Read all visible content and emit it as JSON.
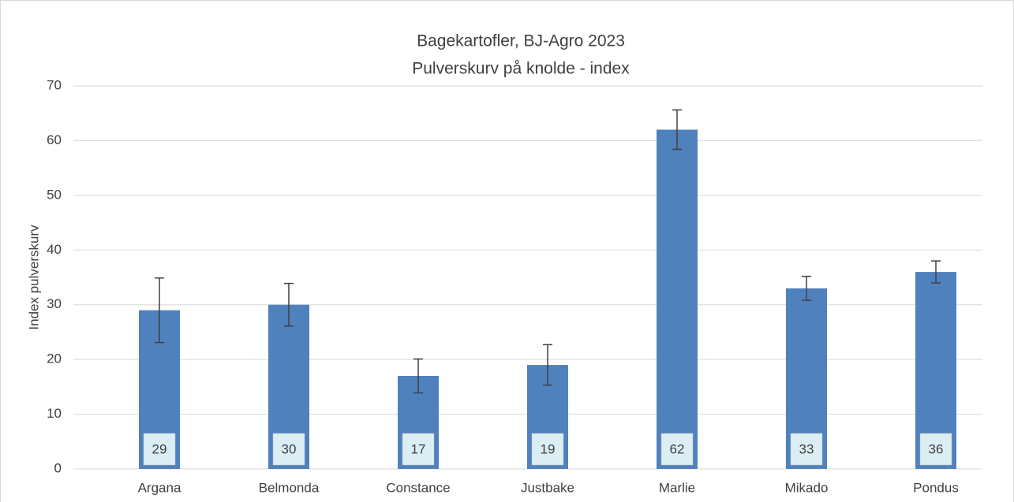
{
  "chart_data": {
    "type": "bar",
    "title": "Bagekartofler, BJ-Agro 2023",
    "subtitle": "Pulverskurv på knolde - index",
    "y_label": "Index pulverskurv",
    "categories": [
      "Argana",
      "Belmonda",
      "Constance",
      "Justbake",
      "Marlie",
      "Mikado",
      "Pondus"
    ],
    "values": [
      29,
      30,
      17,
      19,
      62,
      33,
      36
    ],
    "errors": [
      5.9,
      3.9,
      3.1,
      3.7,
      3.6,
      2.2,
      2.0
    ],
    "color": "#4f81bd",
    "ylim": [
      0,
      70
    ],
    "yticks": [
      0,
      10,
      20,
      30,
      40,
      50,
      60,
      70
    ],
    "grid": true
  }
}
